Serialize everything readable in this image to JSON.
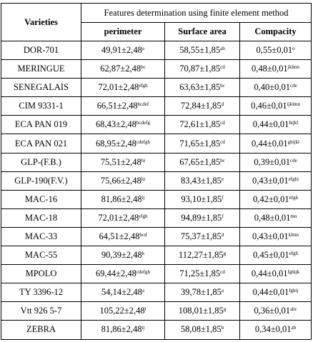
{
  "table": {
    "header_varieties": "Varieties",
    "header_group": "Features determination using finite element method",
    "columns": [
      "perimeter",
      "Surface area",
      "Compacity"
    ],
    "rows": [
      {
        "variety": "DOR-701",
        "perimeter": "49,91±2,48",
        "perimeter_sup": "a",
        "surface": "58,55±1,85",
        "surface_sup": "ab",
        "compacity": "0,55±0,01",
        "compacity_sup": "o"
      },
      {
        "variety": "MERINGUE",
        "perimeter": "62,87±2,48",
        "perimeter_sup": "bc",
        "surface": "70,87±1,85",
        "surface_sup": "cd",
        "compacity": "0,48±0,01",
        "compacity_sup": "jklmn"
      },
      {
        "variety": "SENEGALAIS",
        "perimeter": "72,01±2,48",
        "perimeter_sup": "efgh",
        "surface": "63,63±1,85",
        "surface_sup": "bc",
        "compacity": "0,40±0,01",
        "compacity_sup": "cde"
      },
      {
        "variety": "CIM 9331-1",
        "perimeter": "66,51±2,48",
        "perimeter_sup": "bcdef",
        "surface": "72,84±1,85",
        "surface_sup": "d",
        "compacity": "0,46±0,01",
        "compacity_sup": "ijklmn"
      },
      {
        "variety": "ECA PAN 019",
        "perimeter": "68,43±2,48",
        "perimeter_sup": "bcdefg",
        "surface": "72,61±1,85",
        "surface_sup": "cd",
        "compacity": "0,44±0,01",
        "compacity_sup": "hijkl"
      },
      {
        "variety": "ECA PAN 021",
        "perimeter": "68,95±2,48",
        "perimeter_sup": "cdefgh",
        "surface": "71,65±1,85",
        "surface_sup": "cd",
        "compacity": "0,44±0,01",
        "compacity_sup": "ghijkl"
      },
      {
        "variety": "GLP-(F.B.)",
        "perimeter": "75,51±2,48",
        "perimeter_sup": "hi",
        "surface": "67,65±1,85",
        "surface_sup": "bc",
        "compacity": "0,39±0,01",
        "compacity_sup": "cde"
      },
      {
        "variety": "GLP-190(F.V.)",
        "perimeter": "75,66±2,48",
        "perimeter_sup": "hi",
        "surface": "83,43±1,85",
        "surface_sup": "e",
        "compacity": "0,43±0,01",
        "compacity_sup": "efghi"
      },
      {
        "variety": "MAC-16",
        "perimeter": "81,86±2,48",
        "perimeter_sup": "ij",
        "surface": "93,10±1,85",
        "surface_sup": "f",
        "compacity": "0,42±0,01",
        "compacity_sup": "efgh"
      },
      {
        "variety": "MAC-18",
        "perimeter": "72,01±2,48",
        "perimeter_sup": "efgh",
        "surface": "94,89±1,85",
        "surface_sup": "f",
        "compacity": "0,48±0,01",
        "compacity_sup": "mn"
      },
      {
        "variety": "MAC-33",
        "perimeter": "64,51±2,48",
        "perimeter_sup": "bcd",
        "surface": "75,37±1,85",
        "surface_sup": "d",
        "compacity": "0,43±0,01",
        "compacity_sup": "klmn"
      },
      {
        "variety": "MAC-55",
        "perimeter": "90,39±2,48",
        "perimeter_sup": "k",
        "surface": "112,27±1,85",
        "surface_sup": "g",
        "compacity": "0,45±0,01",
        "compacity_sup": "efgh"
      },
      {
        "variety": "MPOLO",
        "perimeter": "69,44±2,48",
        "perimeter_sup": "cdefgh",
        "surface": "71,25±1,85",
        "surface_sup": "cd",
        "compacity": "0,44±0,01",
        "compacity_sup": "fghijk"
      },
      {
        "variety": "TY 3396-12",
        "perimeter": "54,14±2,48",
        "perimeter_sup": "a",
        "surface": "39,78±1,85",
        "surface_sup": "a",
        "compacity": "0,44±0,01",
        "compacity_sup": "fghij"
      },
      {
        "variety": "Vtt 926 5-7",
        "perimeter": "105,22±2,48",
        "perimeter_sup": "l",
        "surface": "108,01±1,85",
        "surface_sup": "g",
        "compacity": "0,36±0,01",
        "compacity_sup": "abc"
      },
      {
        "variety": "ZEBRA",
        "perimeter": "81,86±2,48",
        "perimeter_sup": "ij",
        "surface": "58,08±1,85",
        "surface_sup": "b",
        "compacity": "0,34±0,01",
        "compacity_sup": "ab"
      }
    ]
  }
}
